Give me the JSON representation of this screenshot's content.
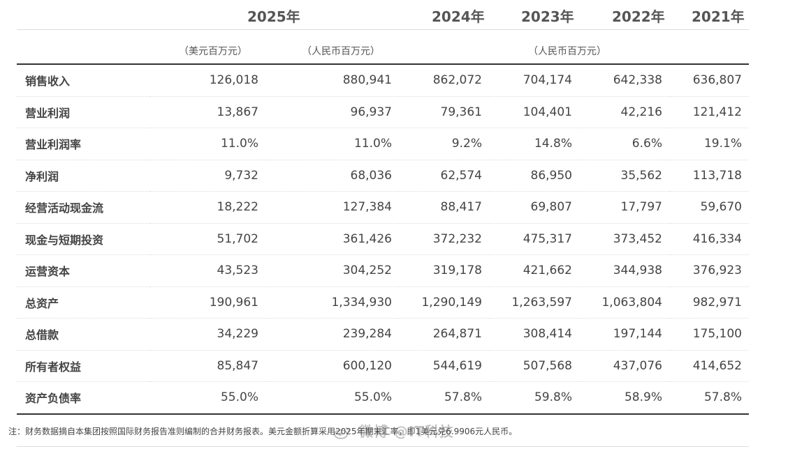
{
  "years": {
    "y2025": "2025年",
    "y2024": "2024年",
    "y2023": "2023年",
    "y2022": "2022年",
    "y2021": "2021年"
  },
  "units": {
    "usd": "（美元百万元）",
    "rmb_2025": "（人民币百万元）",
    "rmb_hist": "（人民币百万元）"
  },
  "rows": [
    {
      "label": "销售收入",
      "usd2025": "126,018",
      "rmb2025": "880,941",
      "y2024": "862,072",
      "y2023": "704,174",
      "y2022": "642,338",
      "y2021": "636,807"
    },
    {
      "label": "营业利润",
      "usd2025": "13,867",
      "rmb2025": "96,937",
      "y2024": "79,361",
      "y2023": "104,401",
      "y2022": "42,216",
      "y2021": "121,412"
    },
    {
      "label": "营业利润率",
      "usd2025": "11.0%",
      "rmb2025": "11.0%",
      "y2024": "9.2%",
      "y2023": "14.8%",
      "y2022": "6.6%",
      "y2021": "19.1%"
    },
    {
      "label": "净利润",
      "usd2025": "9,732",
      "rmb2025": "68,036",
      "y2024": "62,574",
      "y2023": "86,950",
      "y2022": "35,562",
      "y2021": "113,718"
    },
    {
      "label": "经营活动现金流",
      "usd2025": "18,222",
      "rmb2025": "127,384",
      "y2024": "88,417",
      "y2023": "69,807",
      "y2022": "17,797",
      "y2021": "59,670"
    },
    {
      "label": "现金与短期投资",
      "usd2025": "51,702",
      "rmb2025": "361,426",
      "y2024": "372,232",
      "y2023": "475,317",
      "y2022": "373,452",
      "y2021": "416,334"
    },
    {
      "label": "运营资本",
      "usd2025": "43,523",
      "rmb2025": "304,252",
      "y2024": "319,178",
      "y2023": "421,662",
      "y2022": "344,938",
      "y2021": "376,923"
    },
    {
      "label": "总资产",
      "usd2025": "190,961",
      "rmb2025": "1,334,930",
      "y2024": "1,290,149",
      "y2023": "1,263,597",
      "y2022": "1,063,804",
      "y2021": "982,971"
    },
    {
      "label": "总借款",
      "usd2025": "34,229",
      "rmb2025": "239,284",
      "y2024": "264,871",
      "y2023": "308,414",
      "y2022": "197,144",
      "y2021": "175,100"
    },
    {
      "label": "所有者权益",
      "usd2025": "85,847",
      "rmb2025": "600,120",
      "y2024": "544,619",
      "y2023": "507,568",
      "y2022": "437,076",
      "y2021": "414,652"
    },
    {
      "label": "资产负债率",
      "usd2025": "55.0%",
      "rmb2025": "55.0%",
      "y2024": "57.8%",
      "y2023": "59.8%",
      "y2022": "58.9%",
      "y2021": "57.8%"
    }
  ],
  "note": "注：财务数据摘自本集团按照国际财务报告准则编制的合并财务报表。美元金额折算采用2025年期末汇率，即1美元兑6.9906元人民币。",
  "watermark": "微博 @IT科技",
  "colors": {
    "text": "#444444",
    "rule": "#333333",
    "divider": "#dddddd"
  }
}
